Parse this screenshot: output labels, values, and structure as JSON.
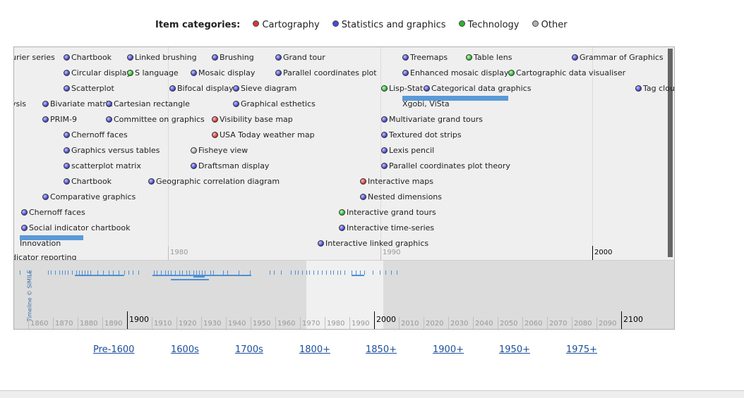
{
  "legend": {
    "title": "Item categories:",
    "categories": [
      {
        "label": "Cartography",
        "color": "#d33a3a"
      },
      {
        "label": "Statistics and graphics",
        "color": "#4a4ad8"
      },
      {
        "label": "Technology",
        "color": "#2bb52b"
      },
      {
        "label": "Other",
        "color": "#b0b0b0"
      }
    ]
  },
  "events": [
    {
      "label": "urier series",
      "cat": "none"
    },
    {
      "label": "Chartbook",
      "cat": "blue"
    },
    {
      "label": "Linked brushing",
      "cat": "blue"
    },
    {
      "label": "Brushing",
      "cat": "blue"
    },
    {
      "label": "Grand tour",
      "cat": "blue"
    },
    {
      "label": "Treemaps",
      "cat": "blue"
    },
    {
      "label": "Table lens",
      "cat": "green"
    },
    {
      "label": "Grammar of Graphics",
      "cat": "blue"
    },
    {
      "label": "Circular display",
      "cat": "blue"
    },
    {
      "label": "S language",
      "cat": "green"
    },
    {
      "label": "Mosaic display",
      "cat": "blue"
    },
    {
      "label": "Parallel coordinates plot",
      "cat": "blue"
    },
    {
      "label": "Enhanced mosaic display",
      "cat": "blue"
    },
    {
      "label": "Cartographic data visualiser",
      "cat": "green"
    },
    {
      "label": "Scatterplot",
      "cat": "blue"
    },
    {
      "label": "Bifocal display",
      "cat": "blue"
    },
    {
      "label": "Sieve diagram",
      "cat": "blue"
    },
    {
      "label": "Lisp-Stat",
      "cat": "green"
    },
    {
      "label": "Categorical data graphics",
      "cat": "blue"
    },
    {
      "label": "Tag clou",
      "cat": "blue"
    },
    {
      "label": "ysis",
      "cat": "none"
    },
    {
      "label": "Bivariate matrix",
      "cat": "blue"
    },
    {
      "label": "Cartesian rectangle",
      "cat": "blue"
    },
    {
      "label": "Graphical esthetics",
      "cat": "blue"
    },
    {
      "label": "Xgobi, ViSta",
      "cat": "none"
    },
    {
      "label": "PRIM-9",
      "cat": "blue"
    },
    {
      "label": "Committee on graphics",
      "cat": "blue"
    },
    {
      "label": "Visibility base map",
      "cat": "red"
    },
    {
      "label": "Multivariate grand tours",
      "cat": "blue"
    },
    {
      "label": "Chernoff faces",
      "cat": "blue"
    },
    {
      "label": "USA Today weather map",
      "cat": "red"
    },
    {
      "label": "Textured dot strips",
      "cat": "blue"
    },
    {
      "label": "Graphics versus tables",
      "cat": "blue"
    },
    {
      "label": "Fisheye view",
      "cat": "grey"
    },
    {
      "label": "Lexis pencil",
      "cat": "blue"
    },
    {
      "label": "scatterplot matrix",
      "cat": "blue"
    },
    {
      "label": "Draftsman display",
      "cat": "blue"
    },
    {
      "label": "Parallel coordinates plot theory",
      "cat": "blue"
    },
    {
      "label": "Chartbook",
      "cat": "blue"
    },
    {
      "label": "Geographic correlation diagram",
      "cat": "blue"
    },
    {
      "label": "Interactive maps",
      "cat": "red"
    },
    {
      "label": "Comparative graphics",
      "cat": "blue"
    },
    {
      "label": "Nested dimensions",
      "cat": "blue"
    },
    {
      "label": "Chernoff faces",
      "cat": "blue"
    },
    {
      "label": "Interactive grand tours",
      "cat": "green"
    },
    {
      "label": "Social indicator chartbook",
      "cat": "blue"
    },
    {
      "label": "Interactive time-series",
      "cat": "blue"
    },
    {
      "label": "Innovation",
      "cat": "none"
    },
    {
      "label": "Interactive linked graphics",
      "cat": "blue"
    },
    {
      "label": "dicator reporting",
      "cat": "none"
    }
  ],
  "top_decades": [
    "1980",
    "1990",
    "2000"
  ],
  "bottom_decades": [
    "1860",
    "1870",
    "1880",
    "1890",
    "1900",
    "1910",
    "1920",
    "1930",
    "1940",
    "1950",
    "1960",
    "1970",
    "1980",
    "1990",
    "2000",
    "2010",
    "2020",
    "2030",
    "2040",
    "2050",
    "2060",
    "2070",
    "2080",
    "2090",
    "2100"
  ],
  "simile_credit": "Timeline © SIMILE",
  "nav": [
    "Pre-1600",
    "1600s",
    "1700s",
    "1800+",
    "1850+",
    "1900+",
    "1950+",
    "1975+"
  ]
}
